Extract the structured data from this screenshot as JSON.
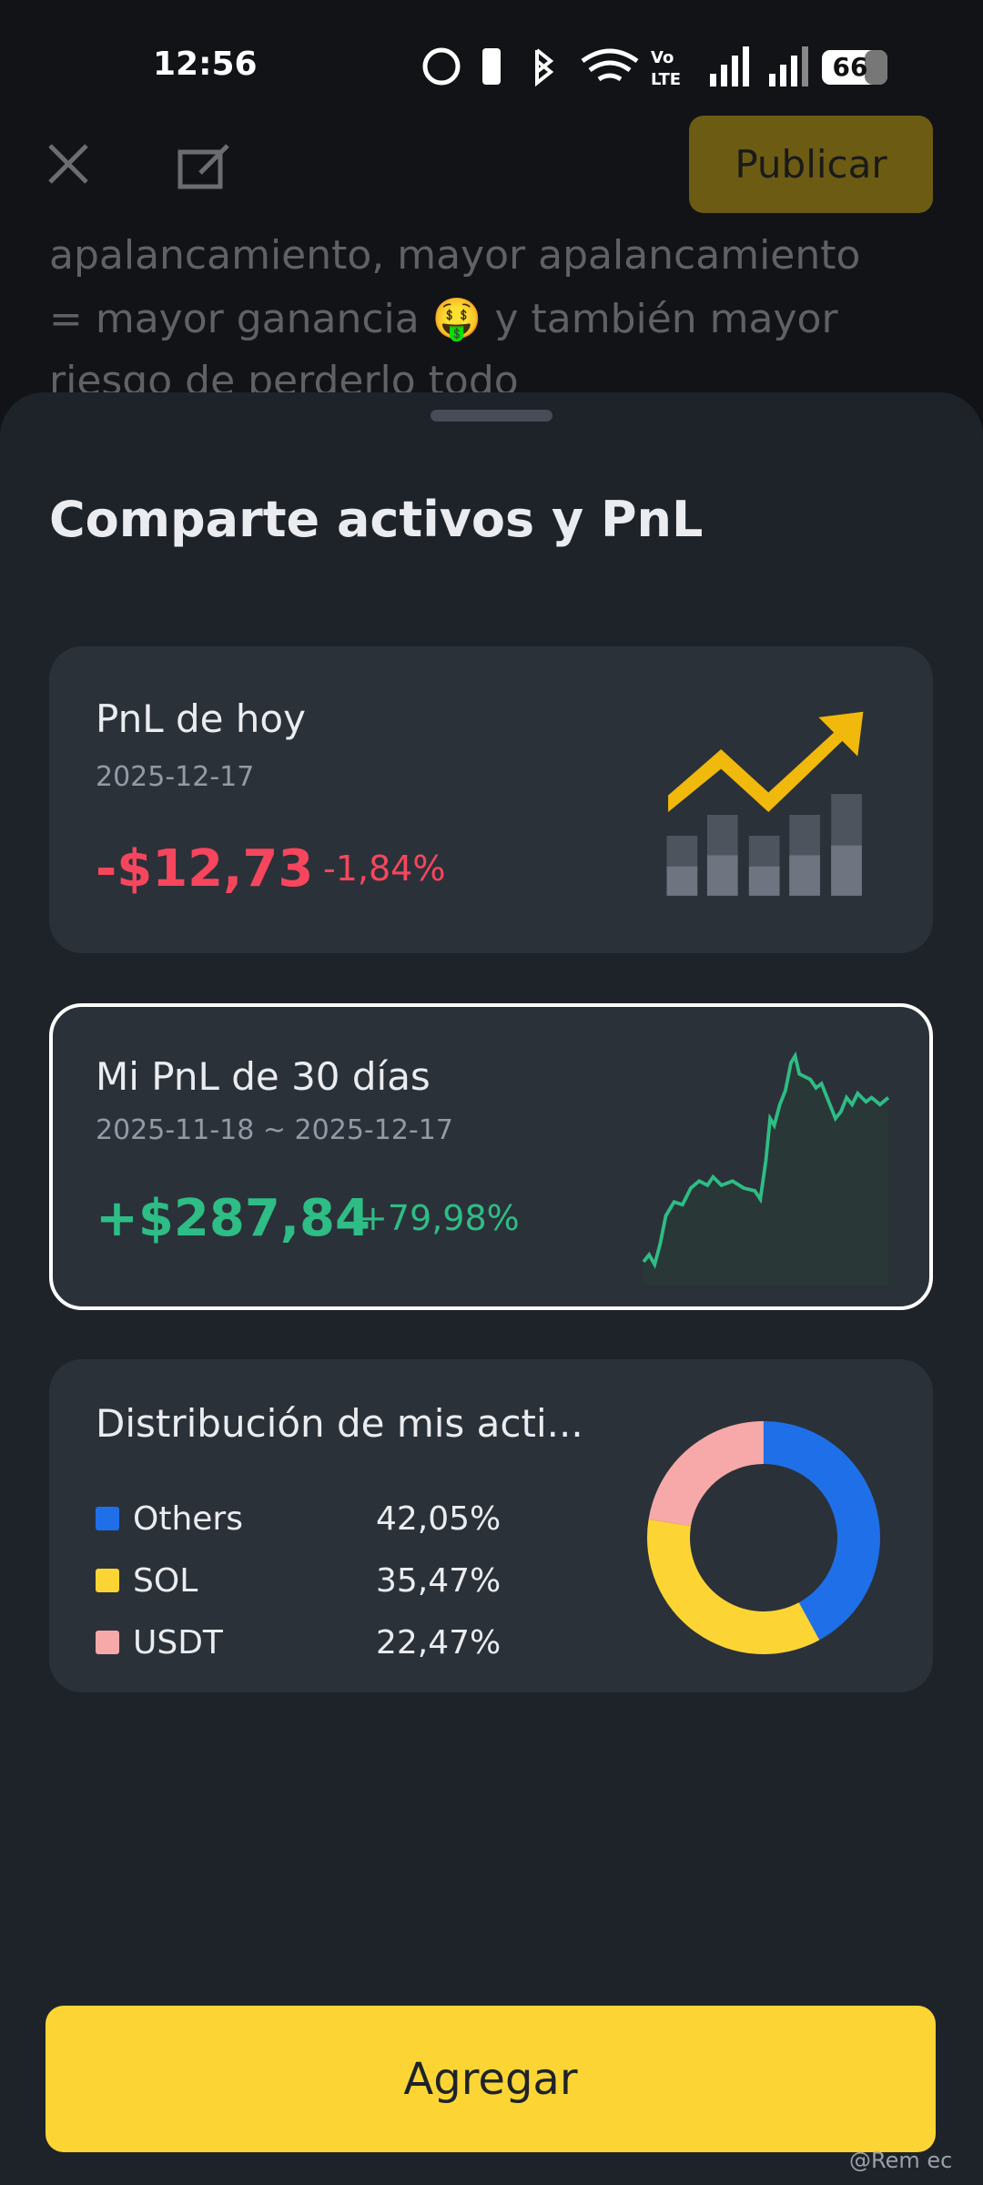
{
  "status_bar": {
    "time": "12:56",
    "battery": "66"
  },
  "top_bar": {
    "publish_button": "Publicar"
  },
  "background_text": {
    "lines": [
      "apalancamiento, mayor apalancamiento",
      "= mayor ganancia 🤑 y también mayor",
      "riesgo de perderlo todo"
    ]
  },
  "sheet": {
    "title": "Comparte activos y PnL"
  },
  "today_pnl": {
    "title": "PnL de hoy",
    "date": "2025-12-17",
    "amount": "-$12,73",
    "percent": "-1,84%"
  },
  "pnl_30d": {
    "title": "Mi PnL de 30 días",
    "date_range": "2025-11-18 ~ 2025-12-17",
    "amount": "+$287,84",
    "percent": "+79,98%"
  },
  "distribution": {
    "title": "Distribución de mis acti...",
    "items": [
      {
        "name": "Others",
        "value": 42.05,
        "value_label": "42,05%",
        "color": "#1e6fe8"
      },
      {
        "name": "SOL",
        "value": 35.47,
        "value_label": "35,47%",
        "color": "#fcd535"
      },
      {
        "name": "USDT",
        "value": 22.47,
        "value_label": "22,47%",
        "color": "#f7a8a8"
      }
    ]
  },
  "add_button": "Agregar",
  "watermark": "@Rem ec"
}
